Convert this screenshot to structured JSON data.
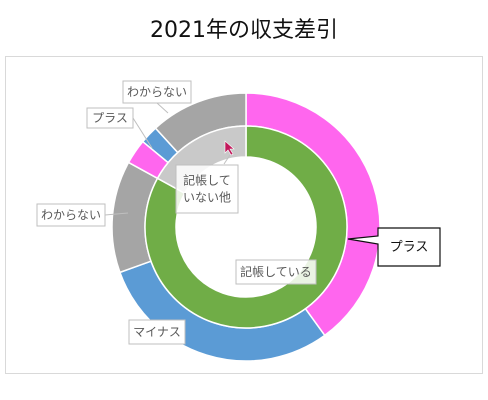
{
  "title": "2021年の収支差引",
  "chart_data": {
    "type": "donut",
    "title": "2021年の収支差引",
    "rings": [
      {
        "ring": "outer",
        "segments": [
          {
            "label": "プラス",
            "value": 40.0,
            "color": "#ff66ee"
          },
          {
            "label": "マイナス",
            "value": 29.5,
            "color": "#5b9bd5"
          },
          {
            "label": "わからない",
            "value": 13.5,
            "color": "#a5a5a5"
          },
          {
            "label": "プラス",
            "value": 3.0,
            "color": "#ff66ee"
          },
          {
            "label": "",
            "value": 2.2,
            "color": "#5b9bd5"
          },
          {
            "label": "わからない",
            "value": 11.8,
            "color": "#a5a5a5"
          }
        ]
      },
      {
        "ring": "inner",
        "segments": [
          {
            "label": "記帳している",
            "value": 83.0,
            "color": "#70ad47"
          },
          {
            "label": "記帳して\nいない他",
            "value": 17.0,
            "color": "#c9c9c9"
          }
        ]
      }
    ]
  }
}
